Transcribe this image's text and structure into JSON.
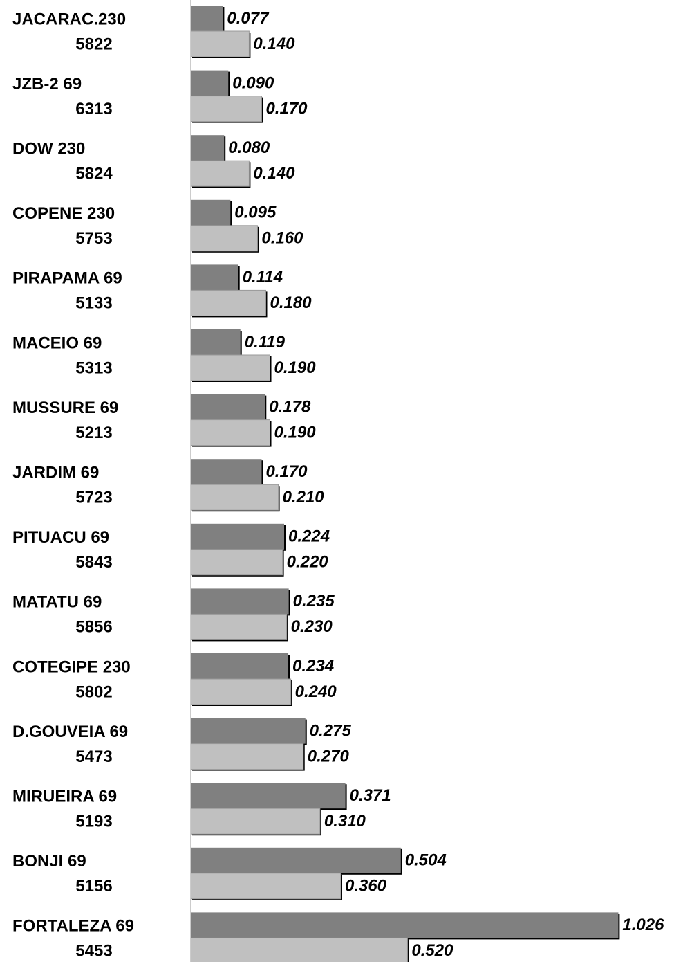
{
  "chart_data": {
    "type": "bar",
    "orientation": "horizontal",
    "categories": [
      [
        "JACARAC.230",
        "5822"
      ],
      [
        "JZB-2 69",
        "6313"
      ],
      [
        "DOW 230",
        "5824"
      ],
      [
        "COPENE 230",
        "5753"
      ],
      [
        "PIRAPAMA 69",
        "5133"
      ],
      [
        "MACEIO 69",
        "5313"
      ],
      [
        "MUSSURE 69",
        "5213"
      ],
      [
        "JARDIM 69",
        "5723"
      ],
      [
        "PITUACU 69",
        "5843"
      ],
      [
        "MATATU 69",
        "5856"
      ],
      [
        "COTEGIPE 230",
        "5802"
      ],
      [
        "D.GOUVEIA 69",
        "5473"
      ],
      [
        "MIRUEIRA 69",
        "5193"
      ],
      [
        "BONJI 69",
        "5156"
      ],
      [
        "FORTALEZA 69",
        "5453"
      ]
    ],
    "series": [
      {
        "color": "#808080",
        "values": [
          0.077,
          0.09,
          0.08,
          0.095,
          0.114,
          0.119,
          0.178,
          0.17,
          0.224,
          0.235,
          0.234,
          0.275,
          0.371,
          0.504,
          1.026
        ],
        "value_labels": [
          "0.077",
          "0.090",
          "0.080",
          "0.095",
          "0.114",
          "0.119",
          "0.178",
          "0.170",
          "0.224",
          "0.235",
          "0.234",
          "0.275",
          "0.371",
          "0.504",
          "1.026"
        ]
      },
      {
        "color": "#c0c0c0",
        "values": [
          0.14,
          0.17,
          0.14,
          0.16,
          0.18,
          0.19,
          0.19,
          0.21,
          0.22,
          0.23,
          0.24,
          0.27,
          0.31,
          0.36,
          0.52
        ],
        "value_labels": [
          "0.140",
          "0.170",
          "0.140",
          "0.160",
          "0.180",
          "0.190",
          "0.190",
          "0.210",
          "0.220",
          "0.230",
          "0.240",
          "0.270",
          "0.310",
          "0.360",
          "0.520"
        ]
      }
    ],
    "xlim": [
      0,
      1.1
    ]
  }
}
